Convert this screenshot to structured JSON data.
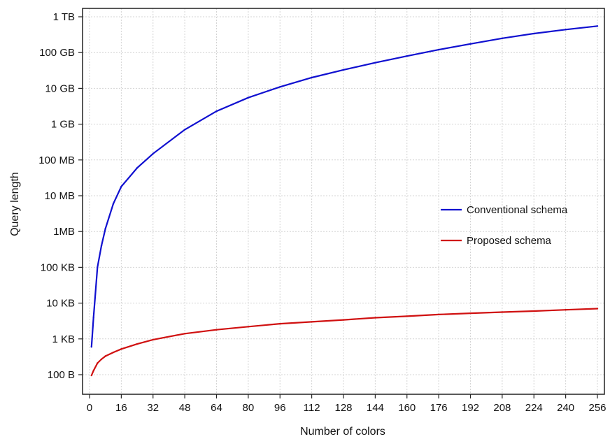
{
  "chart_data": {
    "type": "line",
    "title": "",
    "xlabel": "Number of colors",
    "ylabel": "Query length",
    "xlim": [
      0,
      256
    ],
    "x_ticks": [
      0,
      16,
      32,
      48,
      64,
      80,
      96,
      112,
      128,
      144,
      160,
      176,
      192,
      208,
      224,
      240,
      256
    ],
    "y_scale": "log",
    "y_ticks": [
      {
        "label": "100 B",
        "bytes": 100
      },
      {
        "label": "1 KB",
        "bytes": 1000
      },
      {
        "label": "10 KB",
        "bytes": 10000
      },
      {
        "label": "100 KB",
        "bytes": 100000
      },
      {
        "label": "1MB",
        "bytes": 1000000
      },
      {
        "label": "10 MB",
        "bytes": 10000000
      },
      {
        "label": "100 MB",
        "bytes": 100000000
      },
      {
        "label": "1 GB",
        "bytes": 1000000000
      },
      {
        "label": "10 GB",
        "bytes": 10000000000
      },
      {
        "label": "100 GB",
        "bytes": 100000000000
      },
      {
        "label": "1 TB",
        "bytes": 1000000000000
      }
    ],
    "grid": true,
    "legend": "center-right",
    "series": [
      {
        "name": "Conventional schema",
        "color": "#1010d0",
        "x": [
          1,
          2,
          4,
          6,
          8,
          12,
          16,
          24,
          32,
          48,
          64,
          80,
          96,
          112,
          128,
          144,
          160,
          176,
          192,
          208,
          224,
          240,
          256
        ],
        "y": [
          600,
          4000,
          100000,
          400000,
          1200000,
          6000000,
          18000000,
          60000000,
          150000000,
          700000000,
          2300000000,
          5500000000,
          11000000000,
          20000000000,
          33000000000,
          52000000000,
          80000000000,
          120000000000,
          175000000000,
          250000000000,
          340000000000,
          440000000000,
          550000000000
        ]
      },
      {
        "name": "Proposed schema",
        "color": "#d01010",
        "x": [
          1,
          2,
          4,
          6,
          8,
          12,
          16,
          24,
          32,
          48,
          64,
          80,
          96,
          112,
          128,
          144,
          160,
          176,
          192,
          208,
          224,
          240,
          256
        ],
        "y": [
          95,
          130,
          210,
          270,
          330,
          420,
          520,
          720,
          950,
          1400,
          1800,
          2200,
          2650,
          3000,
          3400,
          3900,
          4300,
          4800,
          5200,
          5600,
          6000,
          6500,
          7000
        ]
      }
    ]
  }
}
